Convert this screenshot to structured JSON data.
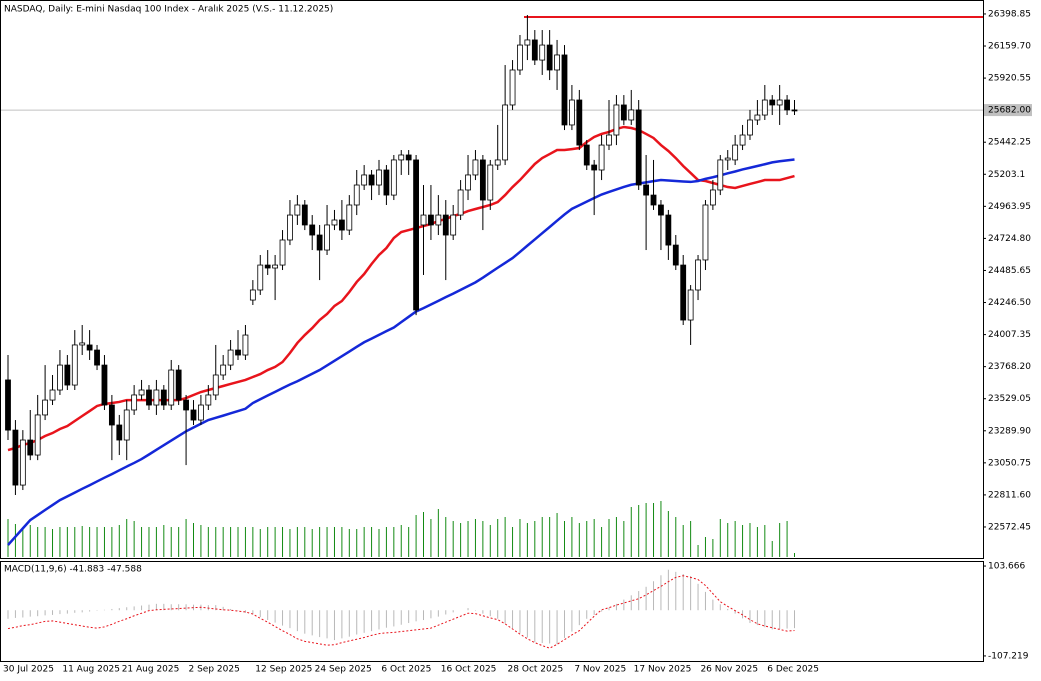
{
  "chart_data": [
    {
      "type": "candlestick",
      "title": "NASDAQ, Daily:  E-mini Nasdaq 100 Index - Aralık 2025 (V.S.- 11.12.2025)",
      "categories": [
        "30 Jul 2025",
        null,
        null,
        null,
        null,
        null,
        null,
        null,
        "11 Aug 2025",
        null,
        null,
        null,
        null,
        null,
        null,
        null,
        "21 Aug 2025",
        null,
        null,
        null,
        null,
        null,
        null,
        null,
        null,
        "2 Sep 2025",
        null,
        null,
        null,
        null,
        null,
        null,
        null,
        null,
        "12 Sep 2025",
        null,
        null,
        null,
        null,
        null,
        null,
        null,
        "24 Sep 2025",
        null,
        null,
        null,
        null,
        null,
        null,
        null,
        null,
        "6 Oct 2025",
        null,
        null,
        null,
        null,
        null,
        null,
        null,
        "16 Oct 2025",
        null,
        null,
        null,
        null,
        null,
        null,
        null,
        null,
        "28 Oct 2025",
        null,
        null,
        null,
        null,
        null,
        null,
        null,
        null,
        "7 Nov 2025",
        null,
        null,
        null,
        null,
        null,
        null,
        null,
        "17 Nov 2025",
        null,
        null,
        null,
        null,
        null,
        null,
        null,
        null,
        "26 Nov 2025",
        null,
        null,
        null,
        null,
        null,
        null,
        null,
        null,
        "6 Dec 2025",
        null,
        null,
        null
      ],
      "open": [
        23669,
        23295,
        22885,
        23221,
        23109,
        23408,
        23519,
        23594,
        23780,
        23631,
        23930,
        23930,
        23892,
        23780,
        23482,
        23333,
        23221,
        23445,
        23557,
        23594,
        23482,
        23594,
        23482,
        23743,
        23519,
        23445,
        23370,
        23482,
        23557,
        23706,
        23780,
        23892,
        23855,
        24265,
        24340,
        24526,
        24504,
        24526,
        24713,
        24899,
        24974,
        24825,
        24750,
        24638,
        24825,
        24862,
        24787,
        24974,
        25123,
        25198,
        25123,
        25235,
        25048,
        25310,
        25347,
        25310,
        24825,
        24899,
        24825,
        24899,
        24750,
        24899,
        25086,
        25198,
        25310,
        25011,
        25272,
        25310,
        25720,
        25981,
        26167,
        26205,
        26055,
        26167,
        25981,
        26093,
        25571,
        25757,
        25421,
        25272,
        25235,
        25421,
        25496,
        25720,
        25608,
        25683,
        25123,
        25048,
        24974,
        24899,
        24675,
        24526,
        24116,
        24340,
        24564,
        24974,
        25086,
        25310,
        25310,
        25421,
        25496,
        25608,
        25645,
        25757,
        25720,
        25757,
        25683
      ],
      "high": [
        23855,
        23370,
        23295,
        23445,
        23557,
        23780,
        23706,
        23892,
        23855,
        24041,
        24079,
        24041,
        23930,
        23855,
        23557,
        23408,
        23519,
        23631,
        23669,
        23631,
        23669,
        23631,
        23818,
        23780,
        23557,
        23519,
        23557,
        23631,
        23930,
        23855,
        23967,
        24041,
        24079,
        24414,
        24601,
        24638,
        24601,
        24787,
        25011,
        25048,
        25011,
        24899,
        24825,
        24974,
        24937,
        25011,
        25048,
        25235,
        25272,
        25235,
        25310,
        25272,
        25347,
        25384,
        25384,
        25347,
        25123,
        25123,
        25048,
        25011,
        24974,
        25160,
        25347,
        25384,
        25347,
        25310,
        25571,
        26018,
        26055,
        26242,
        26391,
        26279,
        26279,
        26279,
        26205,
        26167,
        25869,
        25832,
        25459,
        25310,
        25496,
        25757,
        25794,
        25794,
        25832,
        25757,
        25347,
        25310,
        25011,
        24937,
        24750,
        24601,
        24377,
        24601,
        25011,
        25160,
        25347,
        25384,
        25496,
        25571,
        25683,
        25757,
        25869,
        25794,
        25869,
        25794,
        25757
      ],
      "low": [
        23221,
        22811,
        22848,
        23071,
        23071,
        23370,
        23482,
        23557,
        23594,
        23594,
        23855,
        23818,
        23743,
        23445,
        23071,
        23109,
        23071,
        23408,
        23519,
        23445,
        23408,
        23445,
        23445,
        23482,
        23034,
        23333,
        23333,
        23445,
        23519,
        23669,
        23743,
        23818,
        23818,
        24228,
        24303,
        24452,
        24265,
        24489,
        24675,
        24825,
        24787,
        24638,
        24414,
        24601,
        24787,
        24713,
        24750,
        24899,
        25086,
        25011,
        25048,
        24974,
        25011,
        25198,
        25198,
        24153,
        24452,
        24713,
        24750,
        24414,
        24713,
        24862,
        25011,
        25160,
        24787,
        24937,
        25235,
        25272,
        25683,
        25944,
        26055,
        26018,
        25944,
        25906,
        25832,
        25533,
        25533,
        25384,
        25235,
        24899,
        25160,
        25384,
        25421,
        25571,
        25571,
        25086,
        24638,
        24937,
        24638,
        24564,
        24489,
        24079,
        23930,
        24265,
        24489,
        24937,
        25048,
        25235,
        25272,
        25384,
        25459,
        25571,
        25608,
        25645,
        25571,
        25645,
        25645
      ],
      "close": [
        23295,
        22885,
        23221,
        23109,
        23408,
        23519,
        23594,
        23780,
        23631,
        23930,
        23945,
        23892,
        23780,
        23482,
        23333,
        23221,
        23445,
        23557,
        23594,
        23482,
        23594,
        23482,
        23743,
        23519,
        23445,
        23370,
        23482,
        23557,
        23706,
        23780,
        23892,
        23855,
        24004,
        24340,
        24526,
        24504,
        24526,
        24713,
        24899,
        24974,
        24825,
        24750,
        24638,
        24825,
        24862,
        24787,
        24974,
        25123,
        25198,
        25123,
        25235,
        25048,
        25310,
        25347,
        25310,
        24191,
        24899,
        24825,
        24899,
        24750,
        24899,
        25086,
        25198,
        25310,
        25011,
        25272,
        25310,
        25720,
        25981,
        26167,
        26205,
        26055,
        26167,
        25981,
        26093,
        25571,
        25757,
        25421,
        25272,
        25235,
        25421,
        25496,
        25720,
        25608,
        25683,
        25123,
        25048,
        24974,
        24899,
        24675,
        24526,
        24116,
        24340,
        24564,
        24974,
        25086,
        25310,
        25324,
        25421,
        25496,
        25608,
        25645,
        25757,
        25720,
        25757,
        25683,
        25682
      ],
      "ma_lines": [
        {
          "color": "#e8141c",
          "values": [
            23146,
            23162,
            23184,
            23199,
            23221,
            23251,
            23273,
            23303,
            23325,
            23363,
            23400,
            23437,
            23475,
            23490,
            23497,
            23505,
            23519,
            23519,
            23519,
            23519,
            23519,
            23519,
            23519,
            23519,
            23534,
            23557,
            23579,
            23594,
            23609,
            23624,
            23639,
            23654,
            23669,
            23691,
            23713,
            23743,
            23766,
            23803,
            23870,
            23945,
            24004,
            24056,
            24116,
            24161,
            24221,
            24258,
            24325,
            24400,
            24459,
            24534,
            24601,
            24653,
            24728,
            24772,
            24787,
            24802,
            24817,
            24832,
            24855,
            24869,
            24892,
            24907,
            24929,
            24944,
            24959,
            24974,
            24996,
            25048,
            25108,
            25160,
            25220,
            25280,
            25324,
            25354,
            25384,
            25384,
            25391,
            25399,
            25444,
            25481,
            25504,
            25519,
            25541,
            25556,
            25548,
            25533,
            25504,
            25474,
            25421,
            25377,
            25324,
            25265,
            25213,
            25160,
            25153,
            25138,
            25123,
            25108,
            25101,
            25116,
            25131,
            25145,
            25160,
            25160,
            25160,
            25175,
            25190
          ]
        },
        {
          "color": "#1428d8",
          "values": [
            22438,
            22500,
            22562,
            22624,
            22661,
            22699,
            22736,
            22773,
            22801,
            22829,
            22857,
            22884,
            22912,
            22940,
            22967,
            22995,
            23023,
            23050,
            23079,
            23113,
            23148,
            23182,
            23217,
            23251,
            23286,
            23314,
            23342,
            23370,
            23387,
            23403,
            23420,
            23437,
            23454,
            23497,
            23525,
            23553,
            23580,
            23608,
            23635,
            23659,
            23687,
            23715,
            23743,
            23777,
            23812,
            23846,
            23881,
            23916,
            23950,
            23977,
            24005,
            24033,
            24060,
            24100,
            24140,
            24180,
            24205,
            24232,
            24259,
            24287,
            24313,
            24341,
            24369,
            24397,
            24432,
            24469,
            24506,
            24542,
            24578,
            24624,
            24671,
            24717,
            24764,
            24810,
            24857,
            24903,
            24945,
            24972,
            24999,
            25026,
            25052,
            25071,
            25090,
            25109,
            25125,
            25134,
            25143,
            25152,
            25160,
            25157,
            25153,
            25149,
            25146,
            25153,
            25169,
            25181,
            25195,
            25210,
            25224,
            25239,
            25252,
            25265,
            25278,
            25292,
            25300,
            25307,
            25313
          ]
        }
      ],
      "volume": {
        "color": "#128a12",
        "values": [
          38,
          33,
          30,
          32,
          30,
          30,
          28,
          30,
          30,
          30,
          31,
          30,
          30,
          30,
          30,
          32,
          38,
          36,
          30,
          30,
          30,
          32,
          30,
          30,
          38,
          34,
          32,
          30,
          30,
          30,
          30,
          30,
          30,
          30,
          28,
          30,
          30,
          30,
          28,
          30,
          30,
          28,
          30,
          30,
          30,
          30,
          28,
          28,
          30,
          30,
          28,
          30,
          30,
          32,
          30,
          42,
          45,
          38,
          48,
          40,
          36,
          34,
          36,
          38,
          36,
          32,
          38,
          40,
          30,
          38,
          34,
          36,
          40,
          40,
          44,
          36,
          40,
          34,
          36,
          38,
          30,
          38,
          40,
          36,
          50,
          52,
          54,
          54,
          56,
          46,
          40,
          32,
          36,
          12,
          20,
          18,
          38,
          34,
          36,
          32,
          34,
          30,
          32,
          16,
          34,
          36,
          4
        ]
      },
      "up_color": "#ffffff",
      "down_color": "#000000",
      "ylim": [
        22341,
        26503
      ],
      "yticks": [
        26398.85,
        {
          "value": 26159.7,
          "label": "26159.70"
        },
        25920.55,
        25442.25,
        25203.1,
        24963.95,
        {
          "value": 24724.8,
          "label": "24724.80"
        },
        24485.65,
        {
          "value": 24246.5,
          "label": "24246.50"
        },
        24007.35,
        {
          "value": 23768.2,
          "label": "23768.20"
        },
        23529.05,
        {
          "value": 23289.9,
          "label": "23289.90"
        },
        23050.75,
        {
          "value": 22811.6,
          "label": "22811.60"
        },
        22572.45
      ],
      "last_price": {
        "value": 25682,
        "label": "25682.00"
      },
      "hline": {
        "value": 26376,
        "color": "#e8141c"
      }
    },
    {
      "type": "macd",
      "title": "MACD(11,9,6) -41.883 -47.588",
      "histogram": {
        "color": "#b8b8b8",
        "values": [
          -20,
          -18,
          -17,
          -15,
          -14,
          -12,
          -11,
          -9,
          -8,
          -6,
          -5,
          -3,
          -1,
          1,
          3,
          5,
          7,
          9,
          11,
          13,
          15,
          15,
          14,
          14,
          14,
          13,
          13,
          12,
          12,
          8,
          3,
          -1,
          -6,
          -10,
          -16,
          -23,
          -29,
          -36,
          -42,
          -49,
          -55,
          -59,
          -63,
          -66,
          -70,
          -66,
          -62,
          -57,
          -53,
          -49,
          -45,
          -41,
          -38,
          -34,
          -30,
          -26,
          -23,
          -19,
          -15,
          -10,
          -5,
          0,
          5,
          -1,
          -8,
          -14,
          -20,
          -31,
          -42,
          -53,
          -64,
          -75,
          -77,
          -78,
          -80,
          -65,
          -50,
          -35,
          -20,
          -11,
          -3,
          6,
          15,
          25,
          35,
          45,
          55,
          68,
          82,
          95,
          90,
          85,
          80,
          62,
          43,
          25,
          14,
          3,
          -8,
          -19,
          -30,
          -35,
          -40,
          -45,
          -44,
          -43,
          -41.883
        ]
      },
      "signal": {
        "color": "#e8141c",
        "values": [
          -43,
          -40,
          -36,
          -34,
          -30,
          -26,
          -25,
          -28,
          -31,
          -34,
          -37,
          -40,
          -42,
          -39,
          -33,
          -26,
          -20,
          -13,
          -7,
          -1,
          1,
          2,
          3,
          4,
          5,
          6,
          7,
          5,
          3,
          1,
          0,
          -2,
          -4,
          -9,
          -19,
          -28,
          -38,
          -48,
          -57,
          -67,
          -73,
          -76,
          -79,
          -82,
          -81,
          -76,
          -72,
          -68,
          -64,
          -59,
          -55,
          -53,
          -52,
          -50,
          -48,
          -46,
          -44,
          -42,
          -35,
          -28,
          -21,
          -14,
          -7,
          -8,
          -13,
          -18,
          -22,
          -32,
          -44,
          -56,
          -67,
          -76,
          -83,
          -89,
          -80,
          -69,
          -58,
          -48,
          -31,
          -14,
          1,
          6,
          12,
          17,
          22,
          27,
          36,
          46,
          56,
          67,
          77,
          81,
          77,
          72,
          58,
          39,
          20,
          9,
          -1,
          -11,
          -22,
          -32,
          -37,
          -41,
          -45,
          -49,
          -47.588
        ]
      },
      "ylim": [
        -119.1,
        115.5
      ],
      "yticks": [
        103.666,
        -107.219
      ]
    }
  ]
}
